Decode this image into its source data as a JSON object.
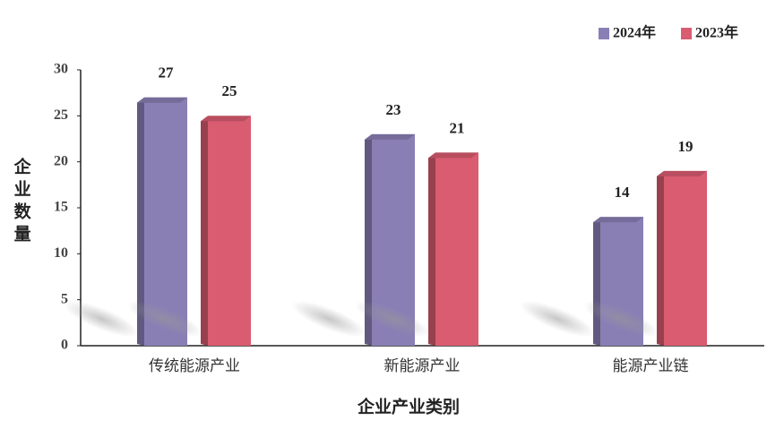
{
  "chart_data": {
    "type": "bar",
    "x_label": "企业产业类别",
    "y_label": "企业数量",
    "categories": [
      "传统能源产业",
      "新能源产业",
      "能源产业链"
    ],
    "series": [
      {
        "name": "2024年",
        "color": "#8a7fb5",
        "values": [
          27,
          23,
          14
        ]
      },
      {
        "name": "2023年",
        "color": "#d95c70",
        "values": [
          25,
          21,
          19
        ]
      }
    ],
    "ylim": [
      0,
      30
    ],
    "yticks": [
      0,
      5,
      10,
      15,
      20,
      25,
      30
    ],
    "legend": "top-right"
  }
}
